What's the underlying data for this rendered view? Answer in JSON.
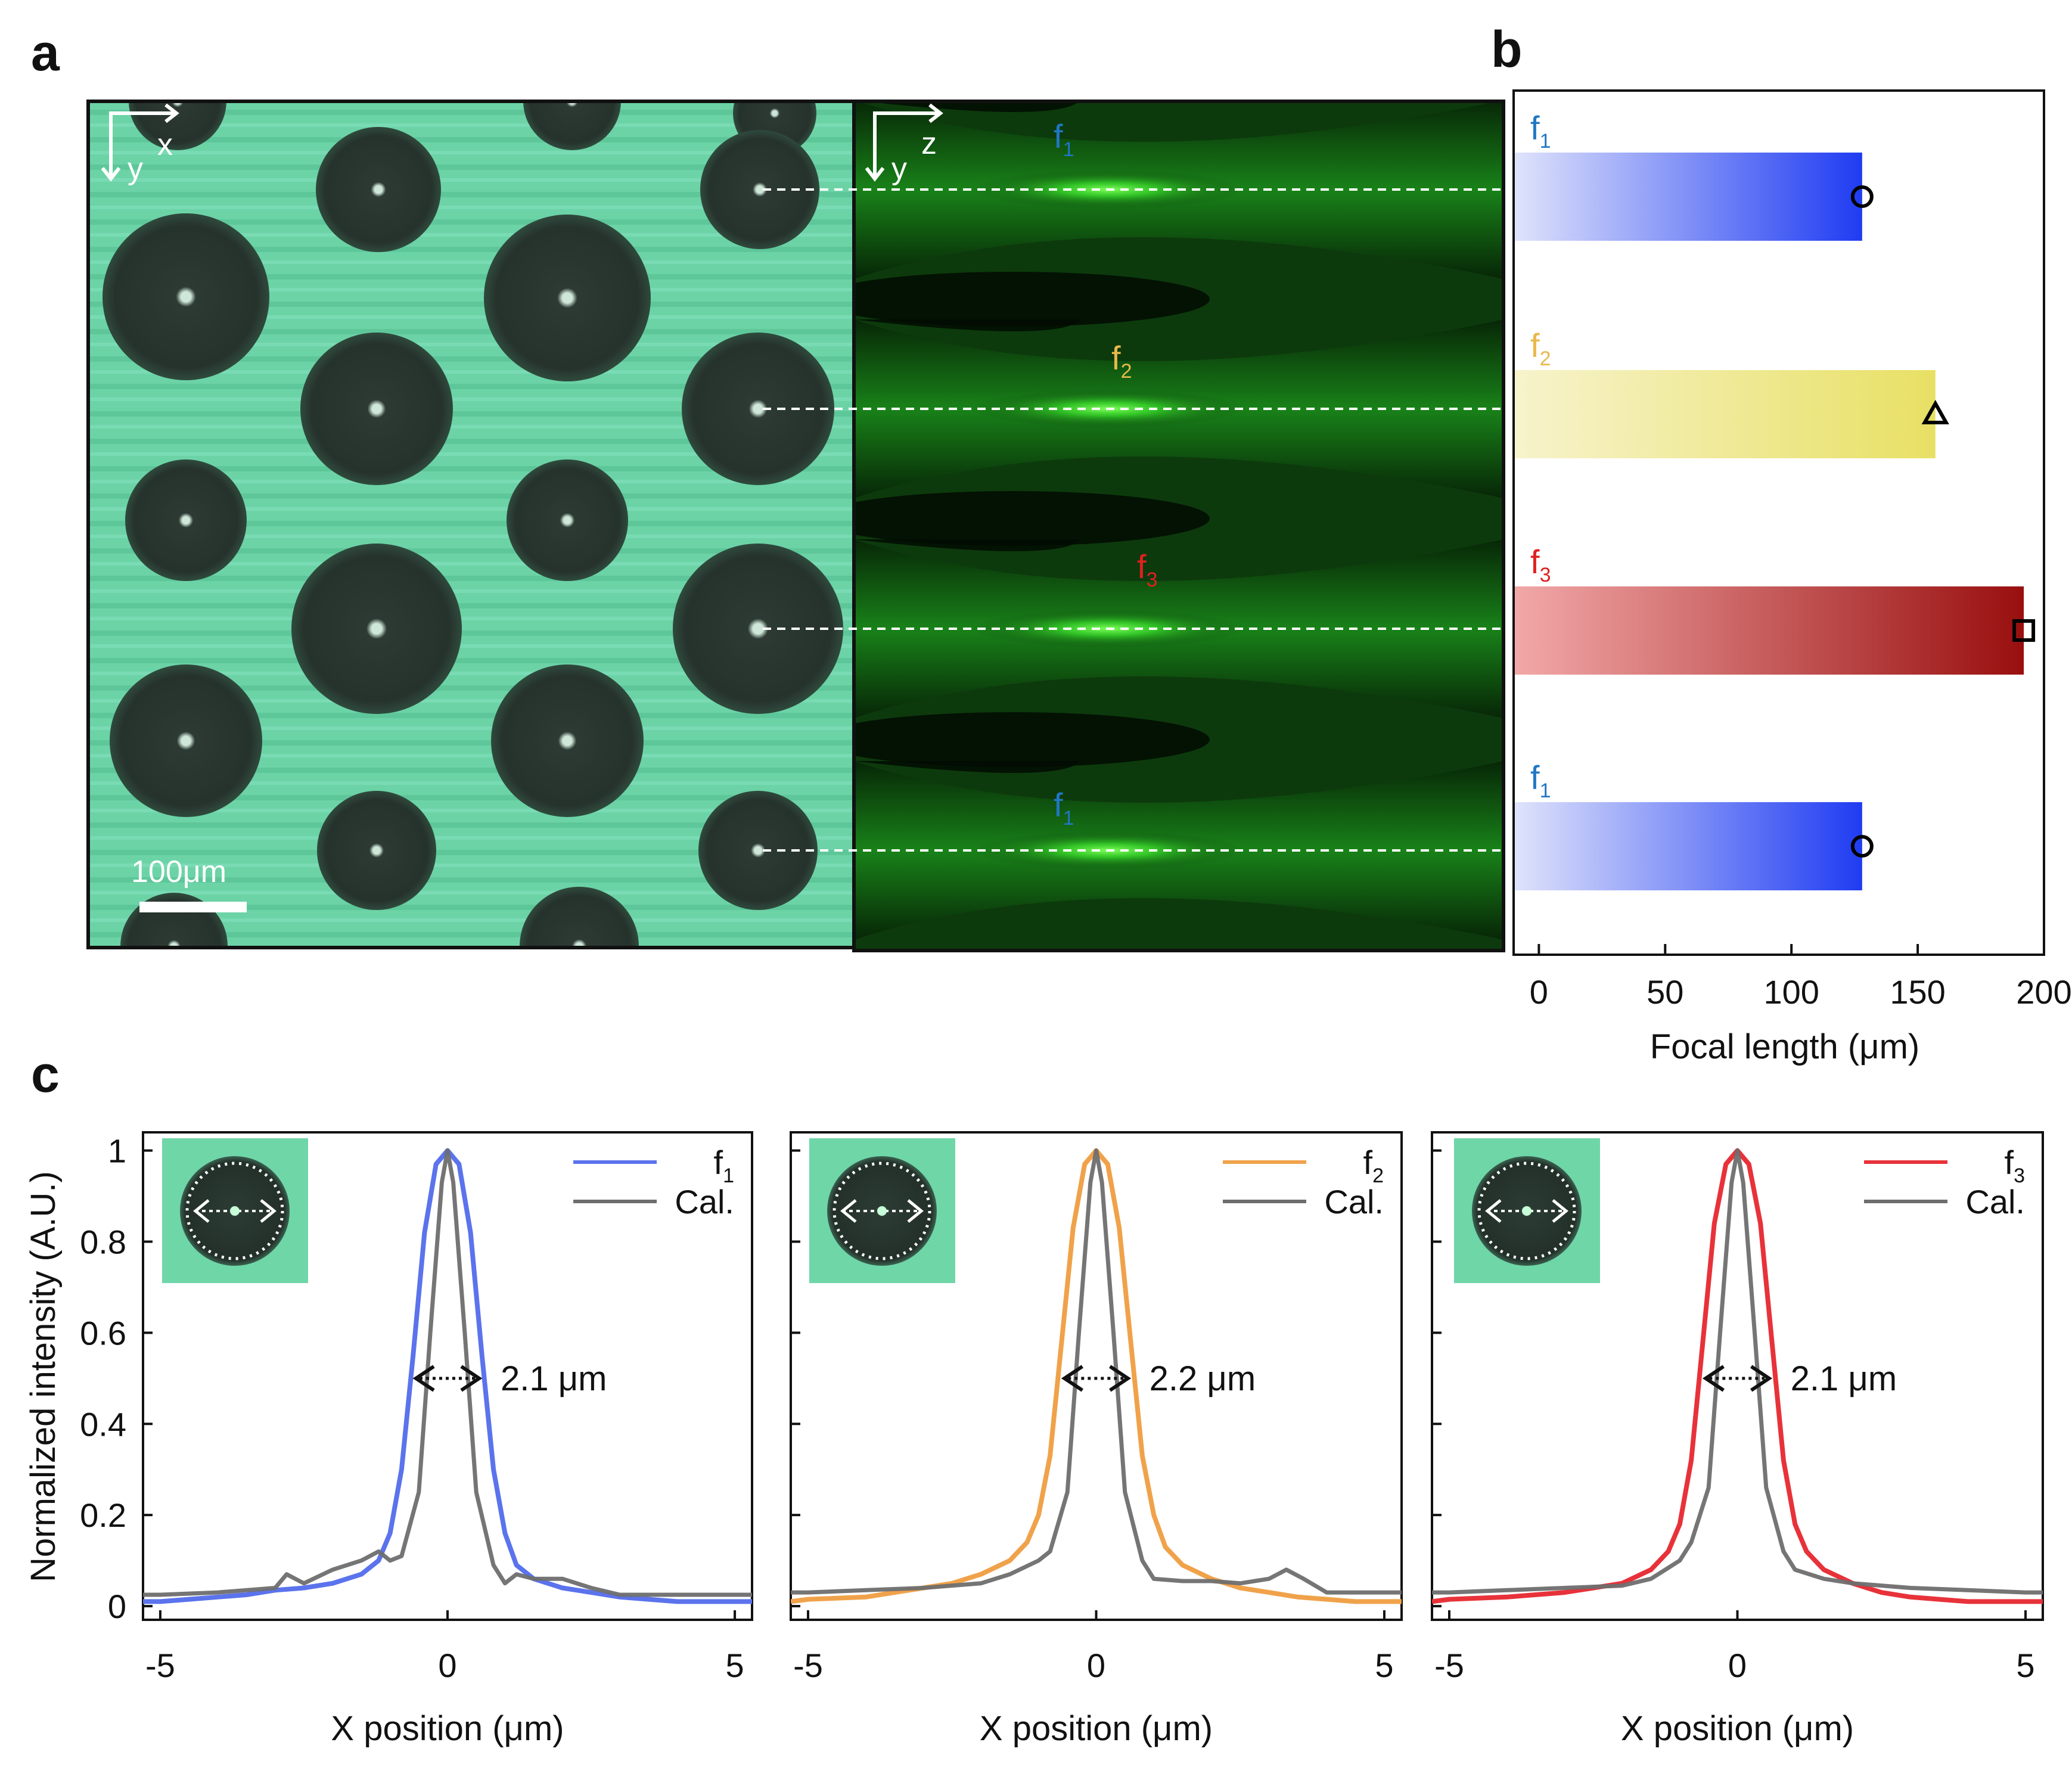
{
  "figure": {
    "panel_letters": [
      "a",
      "b",
      "c"
    ]
  },
  "panel_a": {
    "micrograph": {
      "axis_labels": {
        "horizontal": "x",
        "vertical": "y"
      },
      "scale_bar_label": "100μm"
    },
    "light_field": {
      "axis_labels": {
        "horizontal": "z",
        "vertical": "y"
      },
      "focus_labels": [
        {
          "text": "f",
          "sub": "1",
          "color": "#1f77c4"
        },
        {
          "text": "f",
          "sub": "2",
          "color": "#e8b94a"
        },
        {
          "text": "f",
          "sub": "3",
          "color": "#e02020"
        },
        {
          "text": "f",
          "sub": "1",
          "color": "#1f77c4"
        }
      ]
    }
  },
  "chart_data": [
    {
      "panel": "b",
      "type": "bar",
      "orientation": "horizontal",
      "categories": [
        {
          "text": "f",
          "sub": "1"
        },
        {
          "text": "f",
          "sub": "2"
        },
        {
          "text": "f",
          "sub": "3"
        },
        {
          "text": "f",
          "sub": "1"
        }
      ],
      "values": [
        128,
        157,
        192,
        128
      ],
      "markers": [
        "circle",
        "triangle",
        "square",
        "circle"
      ],
      "category_colors": [
        "#1f77c4",
        "#e8b94a",
        "#e02020",
        "#1f77c4"
      ],
      "bar_gradients": [
        [
          "#dfe3fb",
          "#1f3cf2"
        ],
        [
          "#f7f3cc",
          "#e8e064"
        ],
        [
          "#f2a8a8",
          "#990f0f"
        ],
        [
          "#dfe3fb",
          "#1f3cf2"
        ]
      ],
      "xlabel": "Focal length (μm)",
      "xlim": [
        -10,
        200
      ],
      "xticks": [
        0,
        50,
        100,
        150,
        200
      ]
    },
    {
      "panel": "c",
      "type": "line",
      "series": [
        {
          "name": "f",
          "sub": "1",
          "color": "#5b73ec",
          "x": [
            -5.3,
            -5,
            -4.5,
            -4,
            -3.5,
            -3,
            -2.5,
            -2,
            -1.5,
            -1.2,
            -1,
            -0.8,
            -0.6,
            -0.4,
            -0.2,
            0,
            0.2,
            0.4,
            0.6,
            0.8,
            1,
            1.2,
            1.5,
            2,
            2.5,
            3,
            3.5,
            4,
            4.5,
            5,
            5.3
          ],
          "y": [
            0.01,
            0.01,
            0.015,
            0.02,
            0.025,
            0.035,
            0.04,
            0.05,
            0.07,
            0.1,
            0.16,
            0.3,
            0.55,
            0.82,
            0.97,
            1.0,
            0.97,
            0.82,
            0.55,
            0.3,
            0.16,
            0.09,
            0.06,
            0.04,
            0.03,
            0.02,
            0.015,
            0.01,
            0.01,
            0.01,
            0.01
          ]
        },
        {
          "name": "Cal.",
          "color": "#6e6e6e",
          "x": [
            -5.3,
            -5,
            -4,
            -3,
            -2.8,
            -2.5,
            -2,
            -1.5,
            -1.2,
            -1,
            -0.8,
            -0.5,
            -0.3,
            -0.1,
            0,
            0.1,
            0.3,
            0.5,
            0.8,
            1,
            1.2,
            1.5,
            2,
            2.5,
            3,
            4,
            5,
            5.3
          ],
          "y": [
            0.025,
            0.025,
            0.03,
            0.04,
            0.07,
            0.05,
            0.08,
            0.1,
            0.12,
            0.1,
            0.11,
            0.25,
            0.6,
            0.93,
            1.0,
            0.93,
            0.6,
            0.25,
            0.09,
            0.05,
            0.07,
            0.06,
            0.06,
            0.04,
            0.025,
            0.025,
            0.025,
            0.025
          ]
        }
      ],
      "annotation": "2.1 μm",
      "xlabel": "X position (μm)",
      "ylabel": "Normalized intensity (A.U.)",
      "xlim": [
        -5.3,
        5.3
      ],
      "ylim": [
        -0.03,
        1.04
      ],
      "xticks": [
        -5,
        0,
        5
      ],
      "yticks": [
        0,
        0.2,
        0.4,
        0.6,
        0.8,
        1
      ],
      "ytick_labels": [
        "0",
        "0.2",
        "0.4",
        "0.6",
        "0.8",
        "1"
      ]
    },
    {
      "panel": "c",
      "type": "line",
      "series": [
        {
          "name": "f",
          "sub": "2",
          "color": "#f0a24a",
          "x": [
            -5.3,
            -5,
            -4,
            -3,
            -2.5,
            -2,
            -1.5,
            -1.2,
            -1,
            -0.8,
            -0.6,
            -0.4,
            -0.2,
            0,
            0.2,
            0.4,
            0.6,
            0.8,
            1,
            1.2,
            1.5,
            2,
            2.5,
            3,
            3.5,
            4,
            4.5,
            5,
            5.3
          ],
          "y": [
            0.01,
            0.015,
            0.02,
            0.04,
            0.05,
            0.07,
            0.1,
            0.14,
            0.2,
            0.33,
            0.58,
            0.83,
            0.97,
            1.0,
            0.97,
            0.83,
            0.58,
            0.33,
            0.2,
            0.13,
            0.09,
            0.06,
            0.04,
            0.03,
            0.02,
            0.015,
            0.01,
            0.01,
            0.01
          ]
        },
        {
          "name": "Cal.",
          "color": "#6e6e6e",
          "x": [
            -5.3,
            -5,
            -4,
            -3,
            -2,
            -1.5,
            -1,
            -0.8,
            -0.5,
            -0.3,
            -0.1,
            0,
            0.1,
            0.3,
            0.5,
            0.8,
            1,
            1.5,
            2,
            2.5,
            3,
            3.3,
            3.6,
            4,
            5,
            5.3
          ],
          "y": [
            0.03,
            0.03,
            0.035,
            0.04,
            0.05,
            0.07,
            0.1,
            0.12,
            0.25,
            0.6,
            0.93,
            1.0,
            0.93,
            0.6,
            0.25,
            0.1,
            0.06,
            0.055,
            0.055,
            0.05,
            0.06,
            0.08,
            0.06,
            0.03,
            0.03,
            0.03
          ]
        }
      ],
      "annotation": "2.2 μm",
      "xlabel": "X position (μm)",
      "xlim": [
        -5.3,
        5.3
      ],
      "ylim": [
        -0.03,
        1.04
      ],
      "xticks": [
        -5,
        0,
        5
      ]
    },
    {
      "panel": "c",
      "type": "line",
      "series": [
        {
          "name": "f",
          "sub": "3",
          "color": "#e8323a",
          "x": [
            -5.3,
            -5,
            -4,
            -3,
            -2.5,
            -2,
            -1.5,
            -1.2,
            -1,
            -0.8,
            -0.6,
            -0.4,
            -0.2,
            0,
            0.2,
            0.4,
            0.6,
            0.8,
            1,
            1.2,
            1.5,
            2,
            2.5,
            3,
            3.5,
            4,
            4.5,
            5,
            5.3
          ],
          "y": [
            0.01,
            0.015,
            0.02,
            0.03,
            0.04,
            0.05,
            0.08,
            0.12,
            0.18,
            0.32,
            0.58,
            0.84,
            0.97,
            1.0,
            0.97,
            0.84,
            0.58,
            0.32,
            0.18,
            0.12,
            0.08,
            0.05,
            0.03,
            0.02,
            0.015,
            0.01,
            0.01,
            0.01,
            0.01
          ]
        },
        {
          "name": "Cal.",
          "color": "#6e6e6e",
          "x": [
            -5.3,
            -5,
            -4,
            -3,
            -2,
            -1.5,
            -1,
            -0.8,
            -0.5,
            -0.3,
            -0.1,
            0,
            0.1,
            0.3,
            0.5,
            0.8,
            1,
            1.5,
            2,
            3,
            4,
            5,
            5.3
          ],
          "y": [
            0.03,
            0.03,
            0.035,
            0.04,
            0.045,
            0.06,
            0.1,
            0.14,
            0.26,
            0.6,
            0.93,
            1.0,
            0.93,
            0.6,
            0.26,
            0.12,
            0.08,
            0.06,
            0.05,
            0.04,
            0.035,
            0.03,
            0.03
          ]
        }
      ],
      "annotation": "2.1 μm",
      "xlabel": "X position (μm)",
      "xlim": [
        -5.3,
        5.3
      ],
      "ylim": [
        -0.03,
        1.04
      ],
      "xticks": [
        -5,
        0,
        5
      ]
    }
  ]
}
